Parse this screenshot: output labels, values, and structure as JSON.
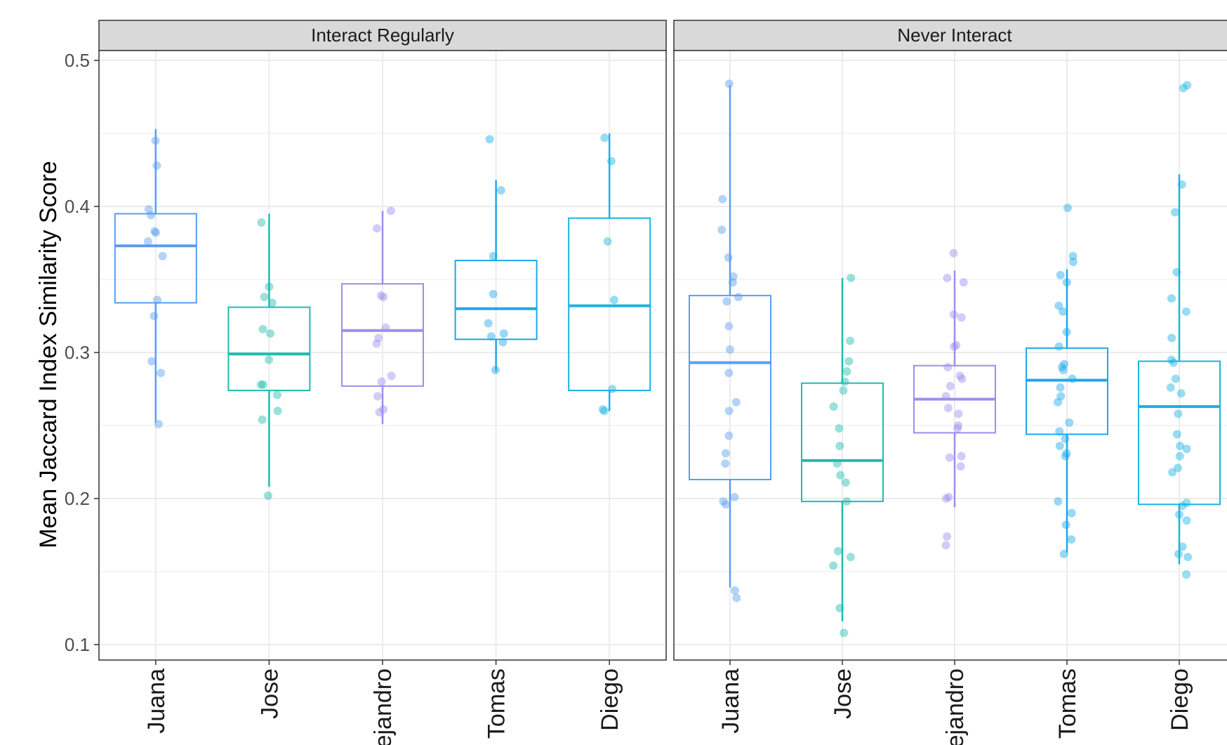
{
  "chart_data": {
    "type": "boxplot",
    "ylabel": "Mean Jaccard Index Similarity Score",
    "ylim": [
      0.1,
      0.5
    ],
    "yticks": [
      "0.1",
      "0.2",
      "0.3",
      "0.4",
      "0.5"
    ],
    "grid": true,
    "categories": [
      "Juana",
      "Jose",
      "Alejandro",
      "Tomas",
      "Diego"
    ],
    "colors": {
      "Juana": "#5b9df0",
      "Jose": "#1ebdb0",
      "Alejandro": "#9a8ff0",
      "Tomas": "#1da8ea",
      "Diego": "#1ab3e0"
    },
    "panels": [
      {
        "label": "Interact Regularly",
        "boxes": [
          {
            "name": "Juana",
            "q1": 0.334,
            "median": 0.373,
            "q3": 0.395,
            "lower": 0.252,
            "upper": 0.453,
            "points": [
              0.445,
              0.428,
              0.398,
              0.394,
              0.383,
              0.382,
              0.376,
              0.366,
              0.336,
              0.325,
              0.294,
              0.286,
              0.251
            ]
          },
          {
            "name": "Jose",
            "q1": 0.274,
            "median": 0.299,
            "q3": 0.331,
            "lower": 0.208,
            "upper": 0.395,
            "points": [
              0.389,
              0.345,
              0.338,
              0.334,
              0.316,
              0.313,
              0.295,
              0.278,
              0.278,
              0.271,
              0.26,
              0.254,
              0.202
            ]
          },
          {
            "name": "Alejandro",
            "q1": 0.277,
            "median": 0.315,
            "q3": 0.347,
            "lower": 0.251,
            "upper": 0.397,
            "points": [
              0.397,
              0.385,
              0.339,
              0.338,
              0.317,
              0.31,
              0.306,
              0.284,
              0.28,
              0.27,
              0.261,
              0.259
            ]
          },
          {
            "name": "Tomas",
            "q1": 0.309,
            "median": 0.33,
            "q3": 0.363,
            "lower": 0.287,
            "upper": 0.418,
            "points": [
              0.446,
              0.411,
              0.366,
              0.34,
              0.32,
              0.313,
              0.311,
              0.307,
              0.288
            ]
          },
          {
            "name": "Diego",
            "q1": 0.274,
            "median": 0.332,
            "q3": 0.392,
            "lower": 0.26,
            "upper": 0.45,
            "points": [
              0.447,
              0.431,
              0.376,
              0.336,
              0.275,
              0.261,
              0.26
            ]
          }
        ]
      },
      {
        "label": "Never Interact",
        "boxes": [
          {
            "name": "Juana",
            "q1": 0.213,
            "median": 0.293,
            "q3": 0.339,
            "lower": 0.139,
            "upper": 0.483,
            "points": [
              0.484,
              0.405,
              0.384,
              0.365,
              0.352,
              0.348,
              0.338,
              0.335,
              0.318,
              0.302,
              0.286,
              0.266,
              0.26,
              0.243,
              0.231,
              0.224,
              0.201,
              0.198,
              0.196,
              0.137,
              0.132
            ]
          },
          {
            "name": "Jose",
            "q1": 0.198,
            "median": 0.226,
            "q3": 0.279,
            "lower": 0.116,
            "upper": 0.351,
            "points": [
              0.351,
              0.308,
              0.294,
              0.287,
              0.28,
              0.274,
              0.263,
              0.248,
              0.236,
              0.224,
              0.216,
              0.211,
              0.198,
              0.164,
              0.16,
              0.154,
              0.125,
              0.108
            ]
          },
          {
            "name": "Alejandro",
            "q1": 0.245,
            "median": 0.268,
            "q3": 0.291,
            "lower": 0.194,
            "upper": 0.356,
            "points": [
              0.368,
              0.351,
              0.348,
              0.326,
              0.324,
              0.305,
              0.304,
              0.29,
              0.284,
              0.282,
              0.277,
              0.27,
              0.262,
              0.258,
              0.25,
              0.248,
              0.229,
              0.228,
              0.222,
              0.201,
              0.2,
              0.174,
              0.168
            ]
          },
          {
            "name": "Tomas",
            "q1": 0.244,
            "median": 0.281,
            "q3": 0.303,
            "lower": 0.163,
            "upper": 0.357,
            "points": [
              0.399,
              0.366,
              0.362,
              0.353,
              0.348,
              0.332,
              0.328,
              0.314,
              0.304,
              0.292,
              0.29,
              0.288,
              0.282,
              0.276,
              0.27,
              0.266,
              0.252,
              0.246,
              0.241,
              0.236,
              0.231,
              0.229,
              0.198,
              0.19,
              0.182,
              0.172,
              0.162
            ]
          },
          {
            "name": "Diego",
            "q1": 0.196,
            "median": 0.263,
            "q3": 0.294,
            "lower": 0.155,
            "upper": 0.422,
            "points": [
              0.483,
              0.481,
              0.415,
              0.396,
              0.355,
              0.337,
              0.328,
              0.31,
              0.295,
              0.293,
              0.282,
              0.276,
              0.272,
              0.258,
              0.244,
              0.236,
              0.234,
              0.229,
              0.221,
              0.218,
              0.197,
              0.195,
              0.189,
              0.185,
              0.167,
              0.162,
              0.16,
              0.148
            ]
          }
        ]
      }
    ]
  }
}
